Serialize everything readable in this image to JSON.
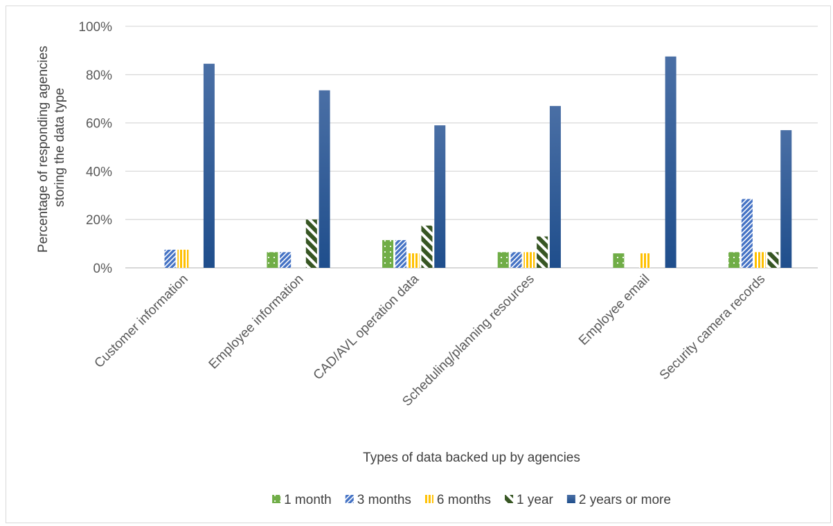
{
  "chart_data": {
    "type": "bar",
    "xlabel": "Types of data backed up by agencies",
    "ylabel_lines": [
      "Percentage of responding agencies",
      "storing the data type"
    ],
    "ylim": [
      0,
      100
    ],
    "yticks": [
      "0%",
      "20%",
      "40%",
      "60%",
      "80%",
      "100%"
    ],
    "grid": true,
    "legend_position": "bottom",
    "categories": [
      "Customer information",
      "Employee information",
      "CAD/AVL operation data",
      "Scheduling/planning resources",
      "Employee email",
      "Security camera records"
    ],
    "series": [
      {
        "name": "1 month",
        "color": "#70ad47",
        "pattern": "dots",
        "values": [
          0,
          6.5,
          11.5,
          6.5,
          6,
          6.5
        ]
      },
      {
        "name": "3 months",
        "color": "#4472c4",
        "pattern": "diagonal",
        "values": [
          7.5,
          6.5,
          11.5,
          6.5,
          0,
          28.5
        ]
      },
      {
        "name": "6 months",
        "color": "#ffc000",
        "pattern": "vertical",
        "values": [
          7.5,
          0,
          6,
          6.5,
          6,
          6.5
        ]
      },
      {
        "name": "1 year",
        "color": "#375623",
        "pattern": "wide-diagonal",
        "values": [
          0,
          20,
          17.5,
          13,
          0,
          6.5
        ]
      },
      {
        "name": "2 years or more",
        "color": "#2f5597",
        "pattern": "solid",
        "values": [
          84.5,
          73.5,
          59,
          67,
          87.5,
          57
        ]
      }
    ]
  }
}
